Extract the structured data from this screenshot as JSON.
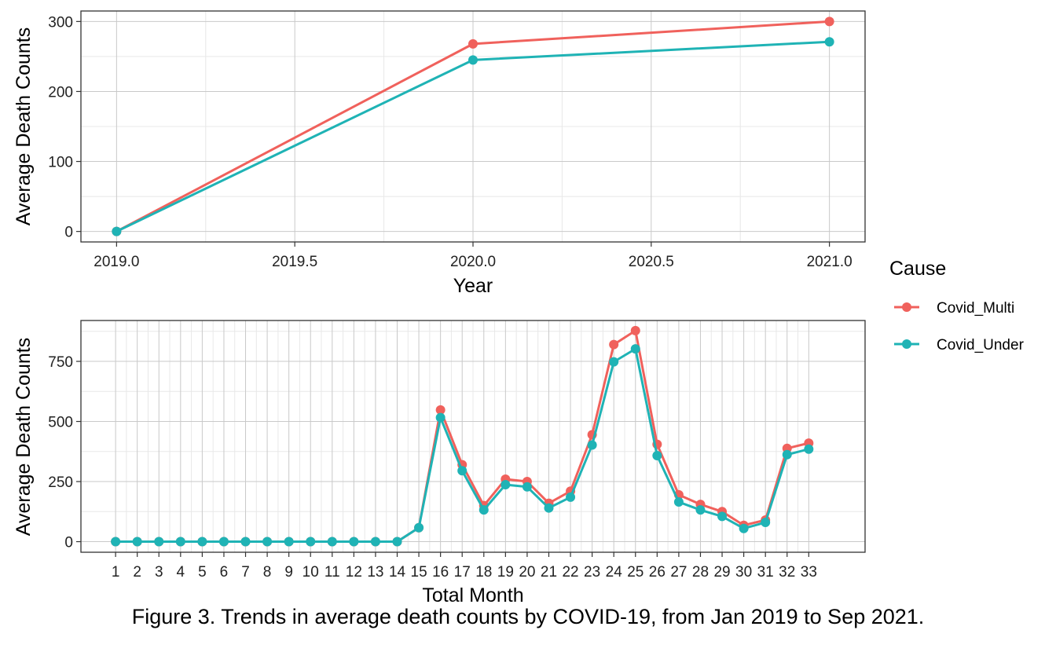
{
  "caption": "Figure 3. Trends in average death counts by COVID-19, from Jan 2019 to Sep 2021.",
  "legend": {
    "title": "Cause",
    "entries": [
      "Covid_Multi",
      "Covid_Under"
    ]
  },
  "colors": {
    "Covid_Multi": "#F0615C",
    "Covid_Under": "#1FB3B5"
  },
  "chart_data": [
    {
      "type": "line",
      "xlabel": "Year",
      "ylabel": "Average Death Counts",
      "x": [
        2019,
        2020,
        2021
      ],
      "xticks": [
        "2019.0",
        "2019.5",
        "2020.0",
        "2020.5",
        "2021.0"
      ],
      "xtick_values": [
        2019.0,
        2019.5,
        2020.0,
        2020.5,
        2021.0
      ],
      "yticks": [
        "0",
        "100",
        "200",
        "300"
      ],
      "ytick_values": [
        0,
        100,
        200,
        300
      ],
      "xlim": [
        2018.9,
        2021.1
      ],
      "ylim": [
        -15,
        315
      ],
      "grid": true,
      "series": [
        {
          "name": "Covid_Multi",
          "values": [
            0,
            268,
            300
          ]
        },
        {
          "name": "Covid_Under",
          "values": [
            0,
            245,
            271
          ]
        }
      ]
    },
    {
      "type": "line",
      "xlabel": "Total Month",
      "ylabel": "Average Death Counts",
      "x": [
        1,
        2,
        3,
        4,
        5,
        6,
        7,
        8,
        9,
        10,
        11,
        12,
        13,
        14,
        15,
        16,
        17,
        18,
        19,
        20,
        21,
        22,
        23,
        24,
        25,
        26,
        27,
        28,
        29,
        30,
        31,
        32,
        33
      ],
      "xticks": [
        "1",
        "2",
        "3",
        "4",
        "5",
        "6",
        "7",
        "8",
        "9",
        "10",
        "11",
        "12",
        "13",
        "14",
        "15",
        "16",
        "17",
        "18",
        "19",
        "20",
        "21",
        "22",
        "23",
        "24",
        "25",
        "26",
        "27",
        "28",
        "29",
        "30",
        "31",
        "32",
        "33"
      ],
      "xtick_values": [
        1,
        2,
        3,
        4,
        5,
        6,
        7,
        8,
        9,
        10,
        11,
        12,
        13,
        14,
        15,
        16,
        17,
        18,
        19,
        20,
        21,
        22,
        23,
        24,
        25,
        26,
        27,
        28,
        29,
        30,
        31,
        32,
        33
      ],
      "yticks": [
        "0",
        "250",
        "500",
        "750"
      ],
      "ytick_values": [
        0,
        250,
        500,
        750
      ],
      "xlim": [
        -0.6,
        35.6
      ],
      "ylim": [
        -44,
        920
      ],
      "grid": true,
      "series": [
        {
          "name": "Covid_Multi",
          "values": [
            0,
            0,
            0,
            0,
            0,
            0,
            0,
            0,
            0,
            0,
            0,
            0,
            0,
            0,
            58,
            548,
            320,
            150,
            260,
            250,
            160,
            210,
            445,
            820,
            878,
            405,
            195,
            155,
            125,
            68,
            90,
            388,
            410
          ]
        },
        {
          "name": "Covid_Under",
          "values": [
            0,
            0,
            0,
            0,
            0,
            0,
            0,
            0,
            0,
            0,
            0,
            0,
            0,
            0,
            58,
            516,
            295,
            132,
            237,
            228,
            140,
            185,
            402,
            748,
            802,
            358,
            165,
            132,
            105,
            55,
            80,
            362,
            385
          ]
        }
      ]
    }
  ]
}
